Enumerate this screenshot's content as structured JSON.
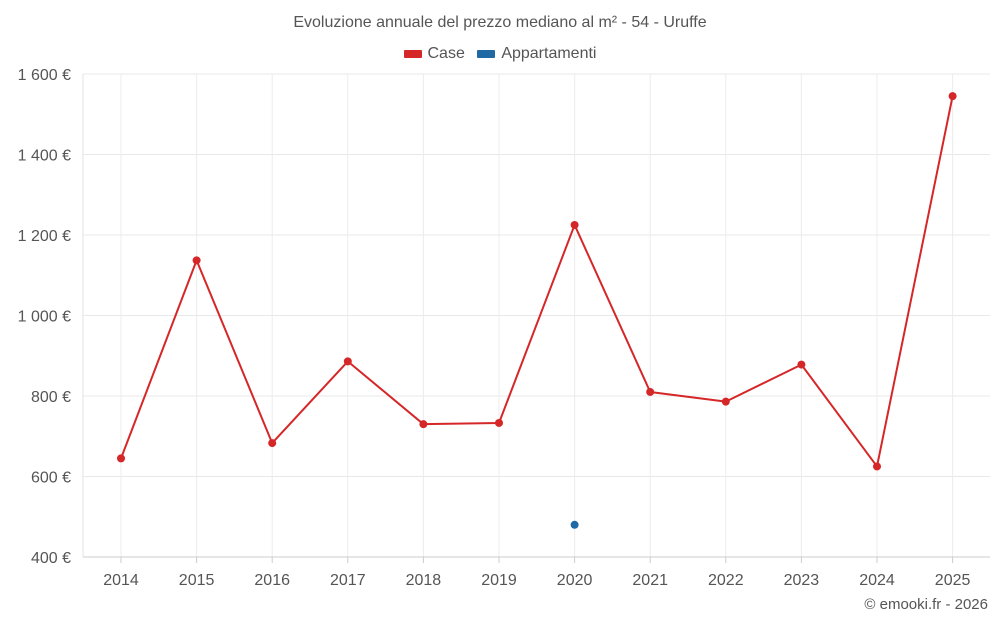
{
  "chart_data": {
    "type": "line",
    "title": "Evoluzione annuale del prezzo mediano al m² - 54 - Uruffe",
    "categories": [
      "2014",
      "2015",
      "2016",
      "2017",
      "2018",
      "2019",
      "2020",
      "2021",
      "2022",
      "2023",
      "2024",
      "2025"
    ],
    "yticks": [
      "400 €",
      "600 €",
      "800 €",
      "1 000 €",
      "1 200 €",
      "1 400 €",
      "1 600 €"
    ],
    "ylim": [
      400,
      1600
    ],
    "grid": true,
    "legend_position": "top",
    "series": [
      {
        "name": "Case",
        "color": "#d62728",
        "values": [
          645,
          1137,
          683,
          886,
          730,
          733,
          1225,
          810,
          786,
          878,
          625,
          1545
        ]
      },
      {
        "name": "Appartamenti",
        "color": "#1f6aa5",
        "values": [
          null,
          null,
          null,
          null,
          null,
          null,
          480,
          null,
          null,
          null,
          null,
          null
        ]
      }
    ]
  },
  "credit": "© emooki.fr - 2026"
}
